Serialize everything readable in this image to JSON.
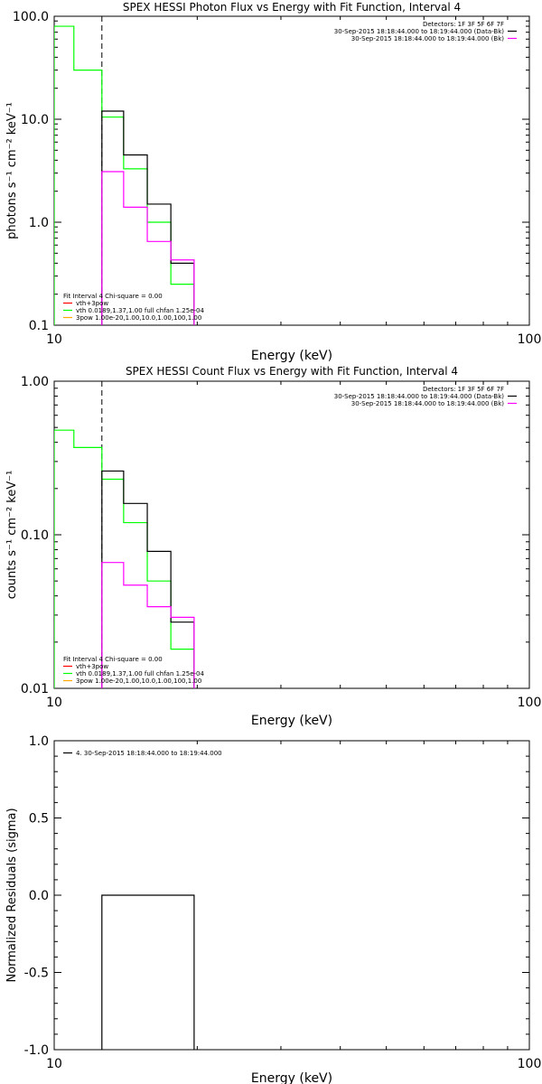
{
  "colors": {
    "black": "#000000",
    "green": "#00ff00",
    "magenta": "#ff00ff",
    "red": "#ff0000",
    "orange": "#ffaa00"
  },
  "chart_data": [
    {
      "type": "line",
      "title": "SPEX HESSI Photon Flux vs Energy with Fit Function, Interval 4",
      "xlabel": "Energy (keV)",
      "ylabel": "photons s⁻¹ cm⁻² keV⁻¹",
      "xscale": "log",
      "yscale": "log",
      "xlim": [
        10,
        100
      ],
      "ylim": [
        0.1,
        100
      ],
      "xticks": [
        {
          "v": 10,
          "label": "10"
        },
        {
          "v": 100,
          "label": "100"
        }
      ],
      "yticks": [
        {
          "v": 0.1,
          "label": "0.1"
        },
        {
          "v": 1,
          "label": "1.0"
        },
        {
          "v": 10,
          "label": "10.0"
        },
        {
          "v": 100,
          "label": "100.0"
        }
      ],
      "vline": 12.6,
      "legend_right": {
        "header": "Detectors: 1F 3F 5F 6F 7F",
        "entries": [
          {
            "label": "30-Sep-2015 18:18:44.000 to 18:19:44.000 (Data-Bk)",
            "color": "#000000"
          },
          {
            "label": "30-Sep-2015 18:18:44.000 to 18:19:44.000 (Bk)",
            "color": "#ff00ff"
          }
        ]
      },
      "legend_left": {
        "header": "Fit Interval 4   Chi-square = 0.00",
        "entries": [
          {
            "label": "vth+3pow",
            "color": "#ff0000"
          },
          {
            "label": "vth 0.0189,1.37,1.00  full chfan 1.25e-04",
            "color": "#00ff00"
          },
          {
            "label": "3pow 1.00e-20,1.00,10.0,1.00,100,1.00",
            "color": "#ffaa00"
          }
        ]
      },
      "series": [
        {
          "color": "#00ff00",
          "edges": [
            10,
            11,
            12.6,
            14,
            15.7,
            17.6,
            19.7
          ],
          "values": [
            80,
            30,
            10.5,
            3.3,
            1.0,
            0.25
          ]
        },
        {
          "color": "#000000",
          "edges": [
            12.6,
            14,
            15.7,
            17.6,
            19.7
          ],
          "values": [
            12,
            4.5,
            1.5,
            0.4
          ]
        },
        {
          "color": "#ff00ff",
          "edges": [
            12.6,
            14,
            15.7,
            17.6,
            19.7
          ],
          "values": [
            3.1,
            1.4,
            0.65,
            0.43
          ]
        }
      ]
    },
    {
      "type": "line",
      "title": "SPEX HESSI Count Flux vs Energy with Fit Function, Interval 4",
      "xlabel": "Energy (keV)",
      "ylabel": "counts s⁻¹ cm⁻² keV⁻¹",
      "xscale": "log",
      "yscale": "log",
      "xlim": [
        10,
        100
      ],
      "ylim": [
        0.01,
        1.0
      ],
      "xticks": [
        {
          "v": 10,
          "label": "10"
        },
        {
          "v": 100,
          "label": "100"
        }
      ],
      "yticks": [
        {
          "v": 0.01,
          "label": "0.01"
        },
        {
          "v": 0.1,
          "label": "0.10"
        },
        {
          "v": 1,
          "label": "1.00"
        }
      ],
      "vline": 12.6,
      "legend_right": {
        "header": "Detectors: 1F 3F 5F 6F 7F",
        "entries": [
          {
            "label": "30-Sep-2015 18:18:44.000 to 18:19:44.000 (Data-Bk)",
            "color": "#000000"
          },
          {
            "label": "30-Sep-2015 18:18:44.000 to 18:19:44.000 (Bk)",
            "color": "#ff00ff"
          }
        ]
      },
      "legend_left": {
        "header": "Fit Interval 4   Chi-square = 0.00",
        "entries": [
          {
            "label": "vth+3pow",
            "color": "#ff0000"
          },
          {
            "label": "vth 0.0189,1.37,1.00  full chfan 1.25e-04",
            "color": "#00ff00"
          },
          {
            "label": "3pow 1.00e-20,1.00,10.0,1.00,100,1.00",
            "color": "#ffaa00"
          }
        ]
      },
      "series": [
        {
          "color": "#00ff00",
          "edges": [
            10,
            11,
            12.6,
            14,
            15.7,
            17.6,
            19.7
          ],
          "values": [
            0.48,
            0.37,
            0.23,
            0.12,
            0.05,
            0.018
          ]
        },
        {
          "color": "#000000",
          "edges": [
            12.6,
            14,
            15.7,
            17.6,
            19.7
          ],
          "values": [
            0.26,
            0.16,
            0.078,
            0.027
          ]
        },
        {
          "color": "#ff00ff",
          "edges": [
            12.6,
            14,
            15.7,
            17.6,
            19.7
          ],
          "values": [
            0.066,
            0.047,
            0.034,
            0.029
          ]
        }
      ]
    },
    {
      "type": "line",
      "title": "",
      "xlabel": "Energy (keV)",
      "ylabel": "Normalized Residuals (sigma)",
      "xscale": "log",
      "yscale": "linear",
      "xlim": [
        10,
        100
      ],
      "ylim": [
        -1.0,
        1.0
      ],
      "xticks": [
        {
          "v": 10,
          "label": "10"
        },
        {
          "v": 100,
          "label": "100"
        }
      ],
      "yticks": [
        {
          "v": -1,
          "label": "-1.0"
        },
        {
          "v": -0.5,
          "label": "-0.5"
        },
        {
          "v": 0,
          "label": "0.0"
        },
        {
          "v": 0.5,
          "label": "0.5"
        },
        {
          "v": 1,
          "label": "1.0"
        }
      ],
      "legend_left": {
        "header": "",
        "entries": [
          {
            "label": "4. 30-Sep-2015 18:18:44.000 to 18:19:44.000",
            "color": "#000000"
          }
        ]
      },
      "residual": {
        "x1": 12.6,
        "x2": 19.7,
        "value": 0.0,
        "bottom": -1.0,
        "color": "#000000"
      }
    }
  ]
}
